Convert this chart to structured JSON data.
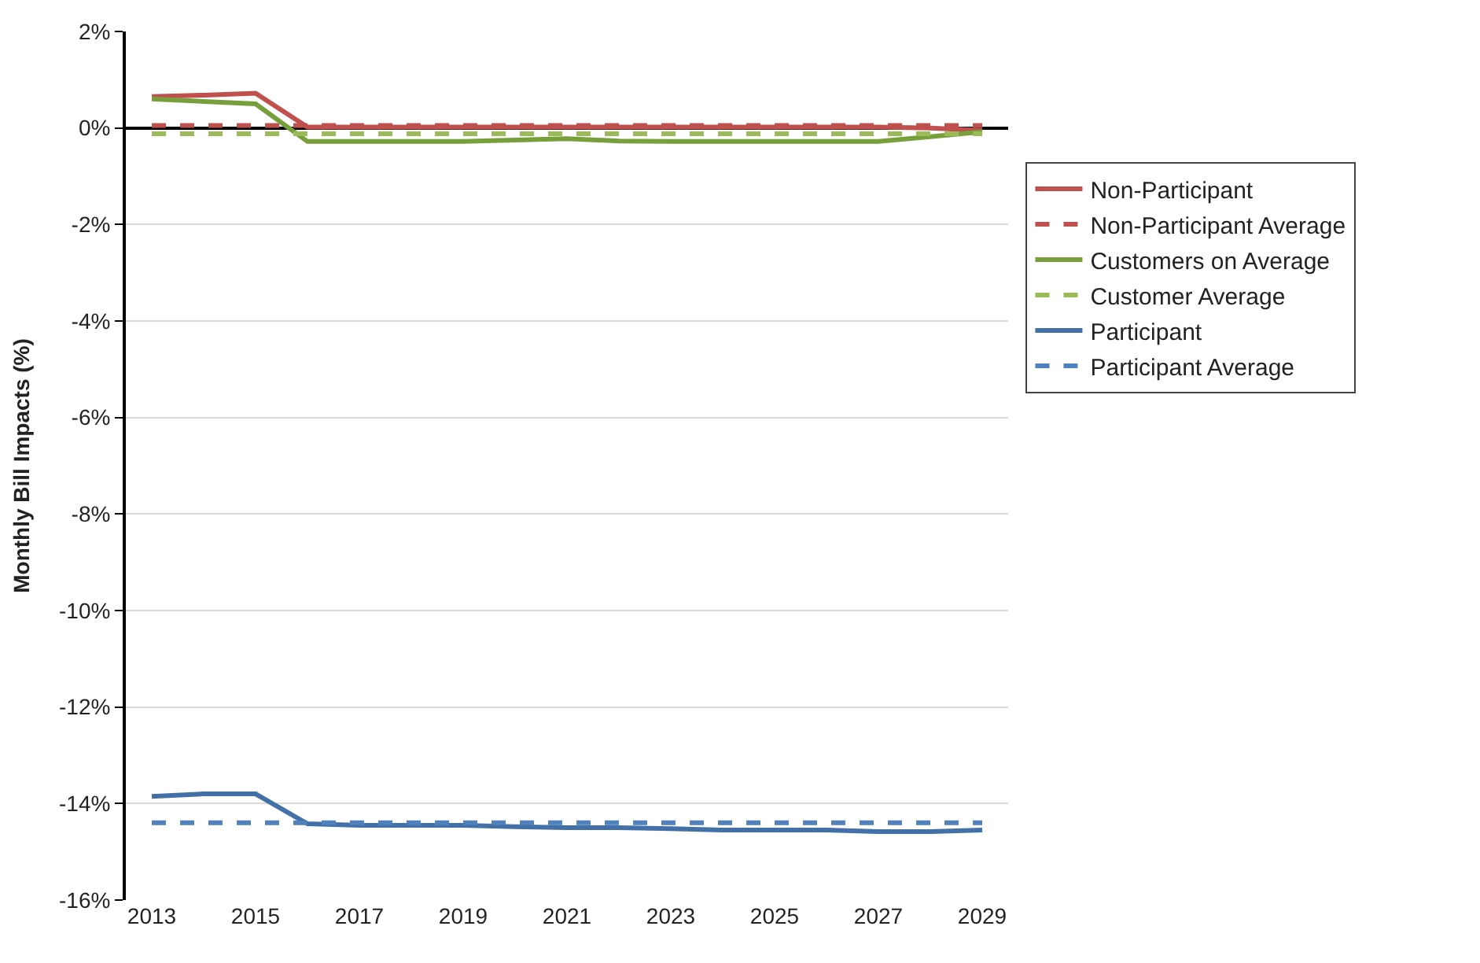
{
  "chart_data": {
    "type": "line",
    "ylabel": "Monthly Bill Impacts (%)",
    "x": [
      2013,
      2014,
      2015,
      2016,
      2017,
      2018,
      2019,
      2020,
      2021,
      2022,
      2023,
      2024,
      2025,
      2026,
      2027,
      2028,
      2029
    ],
    "xlim": [
      2012.5,
      2029.5
    ],
    "xticks": [
      2013,
      2015,
      2017,
      2019,
      2021,
      2023,
      2025,
      2027,
      2029
    ],
    "ylim": [
      -16,
      2
    ],
    "yticks": [
      {
        "value": 2,
        "label": "2%"
      },
      {
        "value": 0,
        "label": "0%"
      },
      {
        "value": -2,
        "label": "-2%"
      },
      {
        "value": -4,
        "label": "-4%"
      },
      {
        "value": -6,
        "label": "-6%"
      },
      {
        "value": -8,
        "label": "-8%"
      },
      {
        "value": -10,
        "label": "-10%"
      },
      {
        "value": -12,
        "label": "-12%"
      },
      {
        "value": -14,
        "label": "-14%"
      },
      {
        "value": -16,
        "label": "-16%"
      }
    ],
    "grid": "y",
    "legend": "right",
    "marker": "none",
    "series": [
      {
        "name": "Non-Participant",
        "color": "#c0504d",
        "line_style": "solid",
        "values": [
          0.65,
          0.68,
          0.72,
          0.02,
          0.02,
          0.02,
          0.02,
          0.02,
          0.02,
          0.02,
          0.02,
          0.02,
          0.02,
          0.02,
          0.02,
          0.0,
          -0.05
        ]
      },
      {
        "name": "Non-Participant Average",
        "color": "#c0504d",
        "line_style": "dashed",
        "values": [
          0.05,
          0.05,
          0.05,
          0.05,
          0.05,
          0.05,
          0.05,
          0.05,
          0.05,
          0.05,
          0.05,
          0.05,
          0.05,
          0.05,
          0.05,
          0.05,
          0.05
        ]
      },
      {
        "name": "Customers on Average",
        "color": "#77a03c",
        "line_style": "solid",
        "values": [
          0.6,
          0.55,
          0.5,
          -0.28,
          -0.28,
          -0.28,
          -0.28,
          -0.25,
          -0.22,
          -0.27,
          -0.28,
          -0.28,
          -0.28,
          -0.28,
          -0.28,
          -0.18,
          -0.08
        ]
      },
      {
        "name": "Customer Average",
        "color": "#9bbb59",
        "line_style": "dashed",
        "values": [
          -0.12,
          -0.12,
          -0.12,
          -0.12,
          -0.12,
          -0.12,
          -0.12,
          -0.12,
          -0.12,
          -0.12,
          -0.12,
          -0.12,
          -0.12,
          -0.12,
          -0.12,
          -0.12,
          -0.12
        ]
      },
      {
        "name": "Participant",
        "color": "#4470a8",
        "line_style": "solid",
        "values": [
          -13.85,
          -13.8,
          -13.8,
          -14.42,
          -14.45,
          -14.45,
          -14.45,
          -14.48,
          -14.5,
          -14.5,
          -14.52,
          -14.55,
          -14.55,
          -14.55,
          -14.58,
          -14.58,
          -14.55
        ]
      },
      {
        "name": "Participant Average",
        "color": "#4f81bd",
        "line_style": "dashed",
        "values": [
          -14.4,
          -14.4,
          -14.4,
          -14.4,
          -14.4,
          -14.4,
          -14.4,
          -14.4,
          -14.4,
          -14.4,
          -14.4,
          -14.4,
          -14.4,
          -14.4,
          -14.4,
          -14.4,
          -14.4
        ]
      }
    ]
  }
}
